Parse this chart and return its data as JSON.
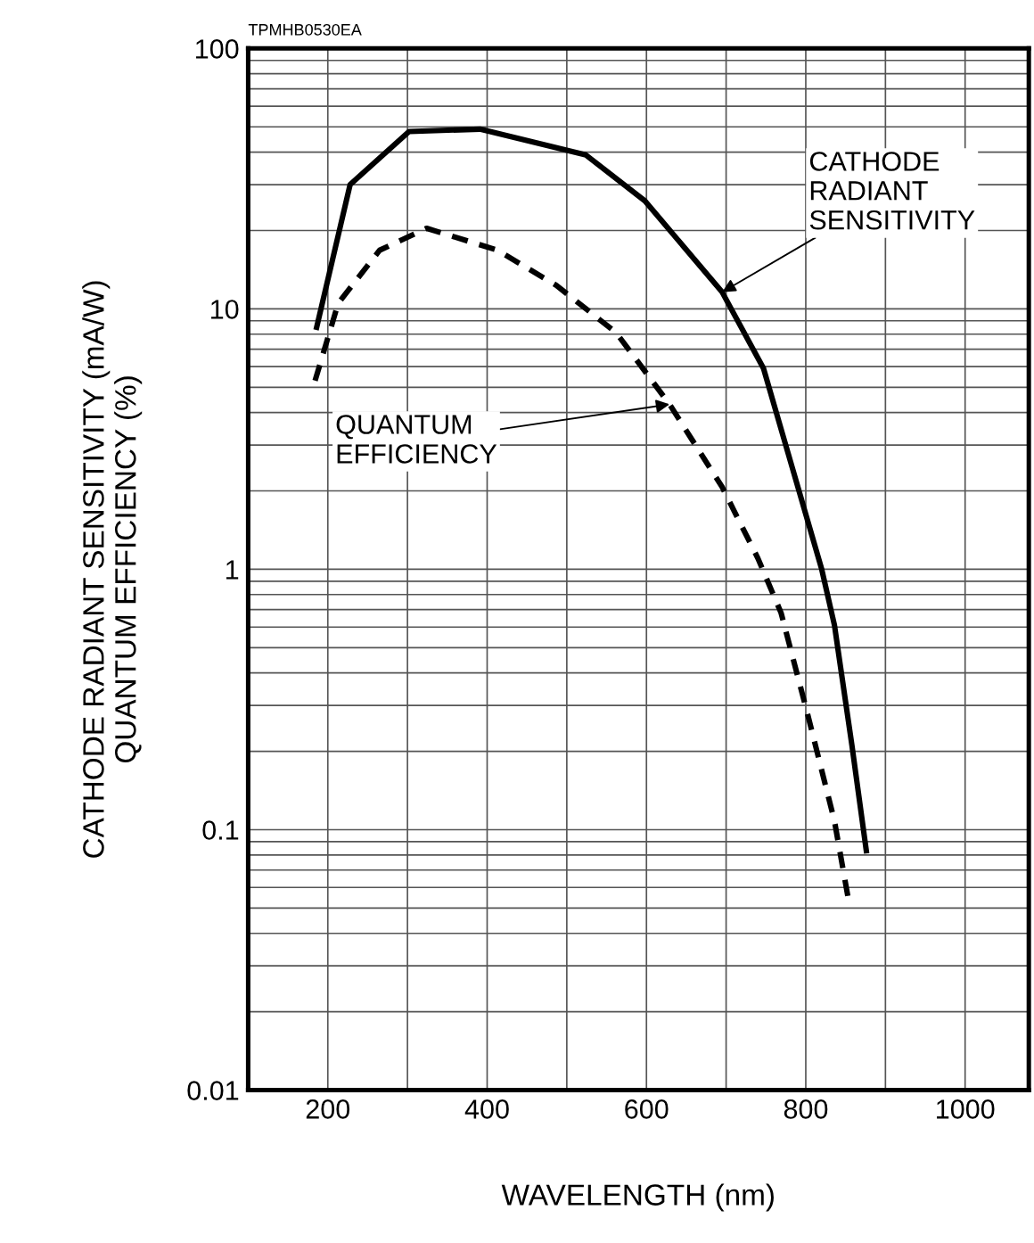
{
  "chart_data": {
    "type": "line",
    "xlabel": "WAVELENGTH (nm)",
    "ylabel": "CATHODE RADIANT SENSITIVITY (mA/W)\nQUANTUM EFFICIENCY (%)",
    "log": "y",
    "grid": true,
    "legend": false,
    "xlim": [
      100,
      1080
    ],
    "xticks": [
      {
        "value": 100,
        "label": null
      },
      200,
      {
        "value": 300,
        "label": null
      },
      400,
      {
        "value": 500,
        "label": null
      },
      600,
      {
        "value": 700,
        "label": null
      },
      800,
      {
        "value": 900,
        "label": null
      },
      1000
    ],
    "ylim": [
      0.01,
      100
    ],
    "yticks": [
      0.01,
      0.1,
      1,
      10,
      100
    ],
    "series": [
      {
        "color": "#000000",
        "line_style": "solid",
        "x": [
          186,
          228,
          302,
          391,
          524,
          598,
          695,
          747,
          820,
          836,
          858,
          876
        ],
        "values": [
          8.5,
          30,
          48,
          49,
          39,
          26,
          11.6,
          5.9,
          1.0,
          0.61,
          0.21,
          0.083
        ]
      },
      {
        "color": "#000000",
        "line_style": "dashed",
        "x": [
          184,
          213,
          265,
          324,
          413,
          487,
          562,
          629,
          695,
          740,
          769,
          802,
          836,
          854
        ],
        "values": [
          5.3,
          10.5,
          16.8,
          20.4,
          16.8,
          12.3,
          8.1,
          4.3,
          2.07,
          1.1,
          0.68,
          0.28,
          0.108,
          0.053
        ]
      }
    ],
    "annotations": [
      "TPMHB0530EA",
      {
        "text": "CATHODE\nRADIANT\nSENSITIVITY",
        "x": 695,
        "y": 11.6
      },
      {
        "text": "QUANTUM\nEFFICIENCY",
        "x": 629,
        "y": 4.3
      }
    ]
  }
}
